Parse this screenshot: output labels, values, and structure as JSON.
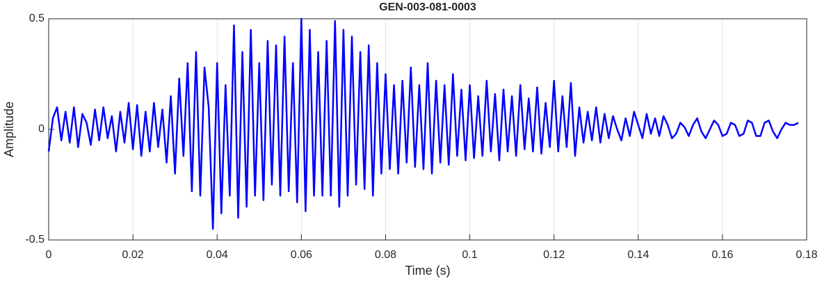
{
  "chart_data": {
    "type": "line",
    "title": "GEN-003-081-0003",
    "xlabel": "Time (s)",
    "ylabel": "Amplitude",
    "xlim": [
      0,
      0.18
    ],
    "ylim": [
      -0.5,
      0.5
    ],
    "xticks": [
      0,
      0.02,
      0.04,
      0.06,
      0.08,
      0.1,
      0.12,
      0.14,
      0.16,
      0.18
    ],
    "yticks": [
      -0.5,
      0,
      0.5
    ],
    "xgrid": true,
    "x": [
      0,
      0.001,
      0.002,
      0.003,
      0.004,
      0.005,
      0.006,
      0.007,
      0.008,
      0.009,
      0.01,
      0.011,
      0.012,
      0.013,
      0.014,
      0.015,
      0.016,
      0.017,
      0.018,
      0.019,
      0.02,
      0.021,
      0.022,
      0.023,
      0.024,
      0.025,
      0.026,
      0.027,
      0.028,
      0.029,
      0.03,
      0.031,
      0.032,
      0.033,
      0.034,
      0.035,
      0.036,
      0.037,
      0.038,
      0.039,
      0.04,
      0.041,
      0.042,
      0.043,
      0.044,
      0.045,
      0.046,
      0.047,
      0.048,
      0.049,
      0.05,
      0.051,
      0.052,
      0.053,
      0.054,
      0.055,
      0.056,
      0.057,
      0.058,
      0.059,
      0.06,
      0.061,
      0.062,
      0.063,
      0.064,
      0.065,
      0.066,
      0.067,
      0.068,
      0.069,
      0.07,
      0.071,
      0.072,
      0.073,
      0.074,
      0.075,
      0.076,
      0.077,
      0.078,
      0.079,
      0.08,
      0.081,
      0.082,
      0.083,
      0.084,
      0.085,
      0.086,
      0.087,
      0.088,
      0.089,
      0.09,
      0.091,
      0.092,
      0.093,
      0.094,
      0.095,
      0.096,
      0.097,
      0.098,
      0.099,
      0.1,
      0.101,
      0.102,
      0.103,
      0.104,
      0.105,
      0.106,
      0.107,
      0.108,
      0.109,
      0.11,
      0.111,
      0.112,
      0.113,
      0.114,
      0.115,
      0.116,
      0.117,
      0.118,
      0.119,
      0.12,
      0.121,
      0.122,
      0.123,
      0.124,
      0.125,
      0.126,
      0.127,
      0.128,
      0.129,
      0.13,
      0.131,
      0.132,
      0.133,
      0.134,
      0.135,
      0.136,
      0.137,
      0.138,
      0.139,
      0.14,
      0.141,
      0.142,
      0.143,
      0.144,
      0.145,
      0.146,
      0.147,
      0.148,
      0.149,
      0.15,
      0.151,
      0.152,
      0.153,
      0.154,
      0.155,
      0.156,
      0.157,
      0.158,
      0.159,
      0.16,
      0.161,
      0.162,
      0.163,
      0.164,
      0.165,
      0.166,
      0.167,
      0.168,
      0.169,
      0.17,
      0.171,
      0.172,
      0.173,
      0.174,
      0.175,
      0.176,
      0.177,
      0.178
    ],
    "series": [
      {
        "color": "#0000ff",
        "values": [
          -0.1,
          0.05,
          0.1,
          -0.05,
          0.08,
          -0.06,
          0.1,
          -0.08,
          0.07,
          0.03,
          -0.07,
          0.09,
          -0.05,
          0.1,
          -0.04,
          0.06,
          -0.1,
          0.08,
          -0.06,
          0.12,
          -0.09,
          0.11,
          -0.12,
          0.08,
          -0.1,
          0.12,
          -0.08,
          0.09,
          -0.15,
          0.15,
          -0.2,
          0.23,
          -0.12,
          0.3,
          -0.28,
          0.35,
          -0.3,
          0.28,
          0.1,
          -0.45,
          0.3,
          -0.38,
          0.2,
          -0.3,
          0.47,
          -0.4,
          0.35,
          -0.35,
          0.45,
          -0.3,
          0.3,
          -0.32,
          0.4,
          -0.25,
          0.38,
          -0.3,
          0.42,
          -0.28,
          0.3,
          -0.33,
          0.5,
          -0.37,
          0.45,
          -0.3,
          0.35,
          -0.3,
          0.4,
          -0.3,
          0.49,
          -0.35,
          0.45,
          -0.3,
          0.42,
          -0.25,
          0.35,
          -0.27,
          0.38,
          -0.3,
          0.3,
          -0.2,
          0.25,
          -0.18,
          0.2,
          -0.2,
          0.22,
          -0.15,
          0.28,
          -0.17,
          0.2,
          -0.18,
          0.3,
          -0.2,
          0.22,
          -0.15,
          0.2,
          -0.16,
          0.25,
          -0.12,
          0.18,
          -0.14,
          0.2,
          -0.13,
          0.15,
          -0.12,
          0.22,
          -0.1,
          0.16,
          -0.14,
          0.18,
          -0.1,
          0.15,
          -0.12,
          0.2,
          -0.09,
          0.14,
          -0.1,
          0.19,
          -0.11,
          0.12,
          -0.08,
          0.22,
          -0.1,
          0.15,
          -0.08,
          0.21,
          -0.12,
          0.1,
          -0.06,
          0.08,
          -0.05,
          0.1,
          -0.06,
          0.07,
          -0.04,
          0.06,
          0,
          -0.05,
          0.05,
          -0.03,
          0.08,
          0.02,
          -0.04,
          0.07,
          -0.02,
          0.05,
          -0.03,
          0.06,
          0.02,
          -0.04,
          -0.02,
          0.03,
          0.01,
          -0.03,
          0.02,
          0.05,
          -0.01,
          -0.04,
          0,
          0.04,
          0.02,
          -0.03,
          -0.02,
          0.03,
          0.02,
          -0.03,
          -0.02,
          0.04,
          0.03,
          -0.03,
          -0.03,
          0.03,
          0.04,
          -0.01,
          -0.04,
          0,
          0.03,
          0.02,
          0.02,
          0.03
        ]
      }
    ]
  }
}
